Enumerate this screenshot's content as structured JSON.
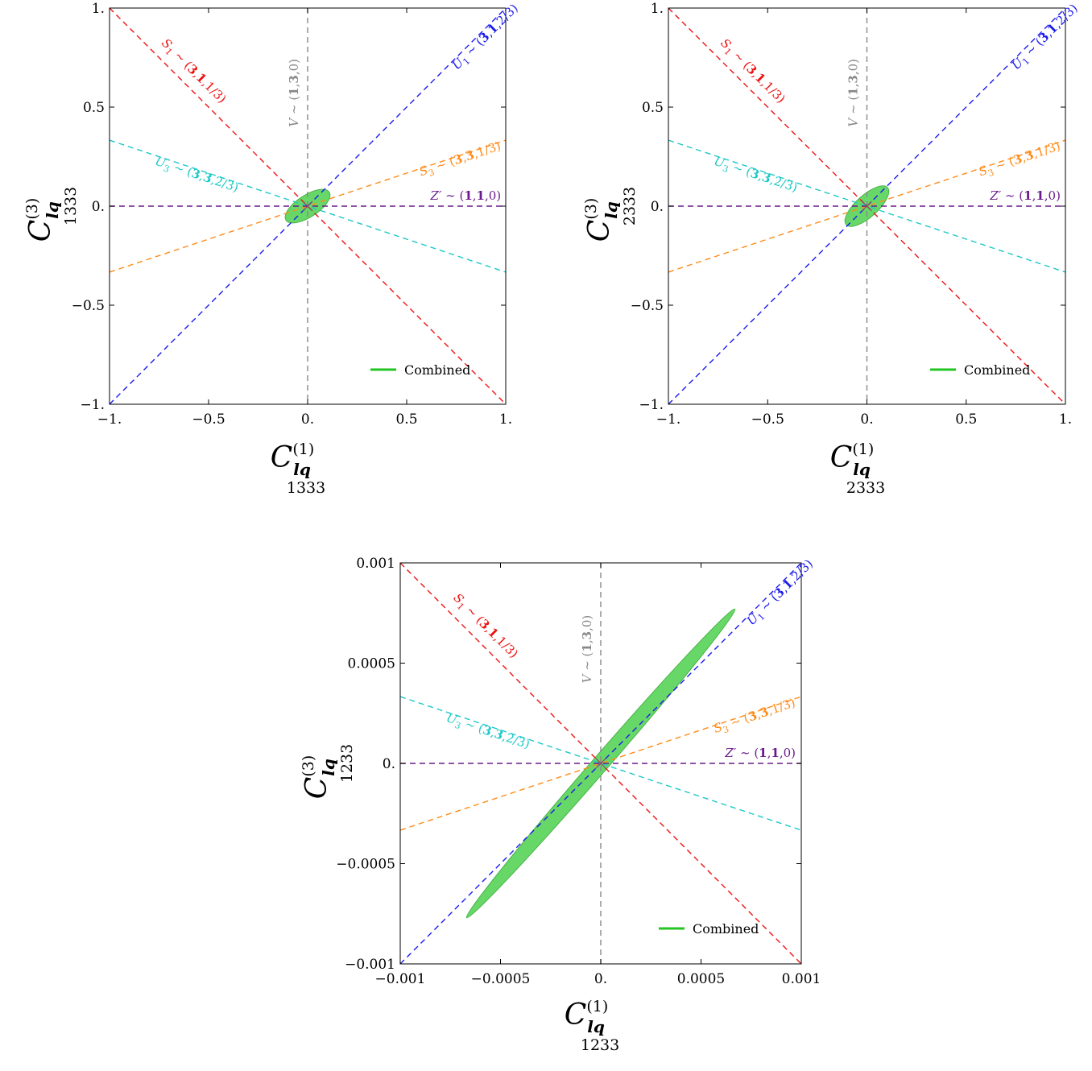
{
  "colors": {
    "S1": "#ee1111",
    "U1": "#1a1aee",
    "U3": "#1fc8c8",
    "S3": "#ff8c1a",
    "Zp": "#6a1a8a",
    "V": "#888888",
    "ellipse_fill": "#5fd65f",
    "ellipse_stroke": "#3fae3f",
    "legend_line": "#22c422"
  },
  "chart_data": [
    {
      "type": "scatter",
      "panel": "top-left",
      "xlabel": {
        "main": "C",
        "sup": "(1)",
        "sub": "lq",
        "sub2": "1333"
      },
      "ylabel": {
        "main": "C",
        "sup": "(3)",
        "sub": "lq",
        "sub2": "1333"
      },
      "xlim": [
        -1,
        1
      ],
      "ylim": [
        -1,
        1
      ],
      "xticks": [
        -1,
        -0.5,
        0,
        0.5,
        1
      ],
      "yticks": [
        -1,
        -0.5,
        0,
        0.5,
        1
      ],
      "xtick_labels": [
        "−1.",
        "−0.5",
        "0.",
        "0.5",
        "1."
      ],
      "ytick_labels": [
        "−1.",
        "−0.5",
        "0.",
        "0.5",
        "1."
      ],
      "legend": {
        "label": "Combined",
        "position": "bottom-right"
      },
      "lines": [
        {
          "name": "S1",
          "slope": -1,
          "label_parts": [
            "S",
            "1",
            " ∼ (",
            "3",
            ",",
            "1",
            ",1/3)"
          ]
        },
        {
          "name": "U1",
          "slope": 1,
          "label_parts": [
            "U",
            "1",
            " ∼ (",
            "3",
            ",",
            "1",
            ",2/3)"
          ]
        },
        {
          "name": "U3",
          "slope": -0.333,
          "label_parts": [
            "U",
            "3",
            " ∼ (",
            "3",
            ",",
            "3",
            ",2/3)"
          ]
        },
        {
          "name": "S3",
          "slope": 0.333,
          "label_parts": [
            "S",
            "3",
            " ∼ (",
            "3",
            ",",
            "3",
            ",1/3)"
          ]
        },
        {
          "name": "Zp",
          "slope": 0,
          "label_parts": [
            "Z′",
            "",
            " ∼ (",
            "1",
            ",",
            "1",
            ",0)"
          ]
        },
        {
          "name": "V",
          "vertical": true,
          "label_parts": [
            "V",
            "",
            " ∼ (",
            "1",
            ",",
            "3",
            ",0)"
          ]
        }
      ],
      "region": {
        "center": [
          0,
          0
        ],
        "semi_axes": [
          0.13,
          0.055
        ],
        "angle_deg": 33
      }
    },
    {
      "type": "scatter",
      "panel": "top-right",
      "xlabel": {
        "main": "C",
        "sup": "(1)",
        "sub": "lq",
        "sub2": "2333"
      },
      "ylabel": {
        "main": "C",
        "sup": "(3)",
        "sub": "lq",
        "sub2": "2333"
      },
      "xlim": [
        -1,
        1
      ],
      "ylim": [
        -1,
        1
      ],
      "xticks": [
        -1,
        -0.5,
        0,
        0.5,
        1
      ],
      "yticks": [
        -1,
        -0.5,
        0,
        0.5,
        1
      ],
      "xtick_labels": [
        "−1.",
        "−0.5",
        "0.",
        "0.5",
        "1."
      ],
      "ytick_labels": [
        "−1.",
        "−0.5",
        "0.",
        "0.5",
        "1."
      ],
      "legend": {
        "label": "Combined",
        "position": "bottom-right"
      },
      "lines": [
        {
          "name": "S1",
          "slope": -1,
          "label_parts": [
            "S",
            "1",
            " ∼ (",
            "3",
            ",",
            "1",
            ",1/3)"
          ]
        },
        {
          "name": "U1",
          "slope": 1,
          "label_parts": [
            "U",
            "1",
            " ∼ (",
            "3",
            ",",
            "1",
            ",2/3)"
          ]
        },
        {
          "name": "U3",
          "slope": -0.333,
          "label_parts": [
            "U",
            "3",
            " ∼ (",
            "3",
            ",",
            "3",
            ",2/3)"
          ]
        },
        {
          "name": "S3",
          "slope": 0.333,
          "label_parts": [
            "S",
            "3",
            " ∼ (",
            "3",
            ",",
            "3",
            ",1/3)"
          ]
        },
        {
          "name": "Zp",
          "slope": 0,
          "label_parts": [
            "Z′",
            "",
            " ∼ (",
            "1",
            ",",
            "1",
            ",0)"
          ]
        },
        {
          "name": "V",
          "vertical": true,
          "label_parts": [
            "V",
            "",
            " ∼ (",
            "1",
            ",",
            "3",
            ",0)"
          ]
        }
      ],
      "region": {
        "center": [
          0,
          0
        ],
        "semi_axes": [
          0.14,
          0.055
        ],
        "angle_deg": 42
      }
    },
    {
      "type": "scatter",
      "panel": "bottom",
      "xlabel": {
        "main": "C",
        "sup": "(1)",
        "sub": "lq",
        "sub2": "1233"
      },
      "ylabel": {
        "main": "C",
        "sup": "(3)",
        "sub": "lq",
        "sub2": "1233"
      },
      "xlim": [
        -0.001,
        0.001
      ],
      "ylim": [
        -0.001,
        0.001
      ],
      "xticks": [
        -0.001,
        -0.0005,
        0,
        0.0005,
        0.001
      ],
      "yticks": [
        -0.001,
        -0.0005,
        0,
        0.0005,
        0.001
      ],
      "xtick_labels": [
        "−0.001",
        "−0.0005",
        "0.",
        "0.0005",
        "0.001"
      ],
      "ytick_labels": [
        "−0.001",
        "−0.0005",
        "0.",
        "0.0005",
        "0.001"
      ],
      "legend": {
        "label": "Combined",
        "position": "bottom-right"
      },
      "lines": [
        {
          "name": "S1",
          "slope": -1,
          "label_parts": [
            "S",
            "1",
            " ∼ (",
            "3",
            ",",
            "1",
            ",1/3)"
          ]
        },
        {
          "name": "U1",
          "slope": 1,
          "label_parts": [
            "U",
            "1",
            " ∼ (",
            "3",
            ",",
            "1",
            ",2/3)"
          ]
        },
        {
          "name": "U3",
          "slope": -0.333,
          "label_parts": [
            "U",
            "3",
            " ∼ (",
            "3",
            ",",
            "3",
            ",2/3)"
          ]
        },
        {
          "name": "S3",
          "slope": 0.333,
          "label_parts": [
            "S",
            "3",
            " ∼ (",
            "3",
            ",",
            "3",
            ",1/3)"
          ]
        },
        {
          "name": "Zp",
          "slope": 0,
          "label_parts": [
            "Z′",
            "",
            " ∼ (",
            "1",
            ",",
            "1",
            ",0)"
          ]
        },
        {
          "name": "V",
          "vertical": true,
          "label_parts": [
            "V",
            "",
            " ∼ (",
            "1",
            ",",
            "3",
            ",0)"
          ]
        }
      ],
      "region": {
        "center": [
          0,
          0
        ],
        "semi_axes": [
          0.00102,
          4e-05
        ],
        "angle_deg": 49
      }
    }
  ]
}
